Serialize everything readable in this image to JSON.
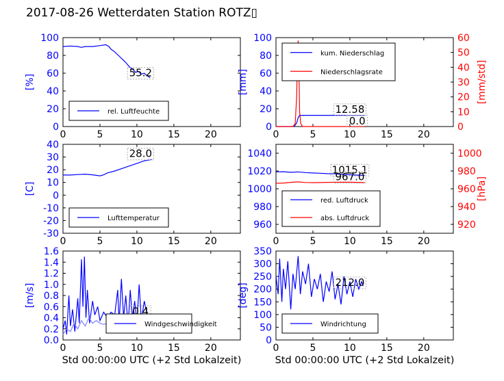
{
  "figure": {
    "title": "2017-08-26 Wetterdaten Station ROTZ▯",
    "xlabel": "Std 00:00:00 UTC (+2 Std Lokalzeit)"
  },
  "colors": {
    "blue": "#0000ff",
    "red": "#ff0000",
    "light_blue": "#7f7fff"
  },
  "chart_data": [
    {
      "id": "humidity",
      "type": "line",
      "xlim": [
        0,
        24
      ],
      "xticks": [
        0,
        5,
        10,
        15,
        20
      ],
      "ylim": [
        0,
        100
      ],
      "yticks": [
        0,
        20,
        40,
        60,
        80,
        100
      ],
      "ylabel": "[%]",
      "legend_position": "bottom-left",
      "annotations": [
        {
          "text": "55.2",
          "x": 10.5,
          "y": 58,
          "color": "#000000"
        }
      ],
      "series": [
        {
          "name": "rel. Luftfeuchte",
          "color": "#0000ff",
          "axis": "left",
          "points": [
            [
              0,
              90
            ],
            [
              1,
              90.5
            ],
            [
              2,
              90
            ],
            [
              2.5,
              89
            ],
            [
              3,
              90
            ],
            [
              4,
              90
            ],
            [
              5,
              91
            ],
            [
              5.8,
              92
            ],
            [
              6.2,
              90
            ],
            [
              6.5,
              87
            ],
            [
              7,
              84
            ],
            [
              7.5,
              80
            ],
            [
              8,
              76
            ],
            [
              8.5,
              72
            ],
            [
              9,
              67
            ],
            [
              9.4,
              65
            ],
            [
              9.8,
              61
            ],
            [
              10.2,
              62
            ],
            [
              10.6,
              59
            ],
            [
              11,
              60
            ],
            [
              11.4,
              57
            ],
            [
              11.8,
              55
            ]
          ]
        }
      ]
    },
    {
      "id": "precipitation",
      "type": "line",
      "xlim": [
        0,
        24
      ],
      "xticks": [
        0,
        5,
        10,
        15,
        20
      ],
      "ylim": [
        0,
        100
      ],
      "yticks": [
        0,
        20,
        40,
        60,
        80,
        100
      ],
      "ylabel": "[mm]",
      "y2lim": [
        0,
        60
      ],
      "y2ticks": [
        0,
        10,
        20,
        30,
        40,
        50,
        60
      ],
      "y2label": "[mm/std]",
      "legend_position": "top-left",
      "annotations": [
        {
          "text": "12.58",
          "x": 10,
          "y": 17,
          "color": "#000000"
        },
        {
          "text": "0.0",
          "x": 11,
          "y": 4,
          "color": "#000000"
        }
      ],
      "series": [
        {
          "name": "kum. Niederschlag",
          "color": "#0000ff",
          "axis": "left",
          "points": [
            [
              0,
              0
            ],
            [
              2,
              0
            ],
            [
              2.5,
              0.5
            ],
            [
              2.8,
              4
            ],
            [
              3,
              10
            ],
            [
              3.2,
              12.58
            ],
            [
              6,
              12.58
            ],
            [
              12,
              12.58
            ]
          ]
        },
        {
          "name": "Niederschlagsrate",
          "color": "#ff0000",
          "axis": "right",
          "points": [
            [
              0,
              0
            ],
            [
              2.3,
              0
            ],
            [
              2.6,
              2
            ],
            [
              2.8,
              20
            ],
            [
              2.9,
              45
            ],
            [
              3,
              58
            ],
            [
              3.1,
              40
            ],
            [
              3.2,
              10
            ],
            [
              3.35,
              2
            ],
            [
              3.6,
              0
            ],
            [
              12,
              0
            ]
          ]
        }
      ]
    },
    {
      "id": "temperature",
      "type": "line",
      "xlim": [
        0,
        24
      ],
      "xticks": [
        0,
        5,
        10,
        15,
        20
      ],
      "ylim": [
        -30,
        40
      ],
      "yticks": [
        -30,
        -20,
        -10,
        0,
        10,
        20,
        30,
        40
      ],
      "ylabel": "[C]",
      "legend_position": "bottom-left",
      "annotations": [
        {
          "text": "28.0",
          "x": 10.5,
          "y": 31,
          "color": "#000000"
        }
      ],
      "series": [
        {
          "name": "Lufttemperatur",
          "color": "#0000ff",
          "axis": "left",
          "points": [
            [
              0,
              15.8
            ],
            [
              1,
              15.8
            ],
            [
              2,
              16.2
            ],
            [
              3,
              16.5
            ],
            [
              4,
              16
            ],
            [
              5,
              15.2
            ],
            [
              5.5,
              16
            ],
            [
              6,
              17.5
            ],
            [
              7,
              19
            ],
            [
              8,
              21
            ],
            [
              9,
              23
            ],
            [
              10,
              25
            ],
            [
              11,
              27
            ],
            [
              12,
              28
            ]
          ]
        }
      ]
    },
    {
      "id": "pressure",
      "type": "line",
      "xlim": [
        0,
        24
      ],
      "xticks": [
        0,
        5,
        10,
        15,
        20
      ],
      "ylim": [
        950,
        1050
      ],
      "yticks": [
        960,
        980,
        1000,
        1020,
        1040
      ],
      "ylabel": "",
      "y2lim": [
        910,
        1010
      ],
      "y2ticks": [
        920,
        940,
        960,
        980,
        1000
      ],
      "y2label": "[hPa]",
      "legend_position": "bottom-left",
      "annotations": [
        {
          "text": "1015.1",
          "x": 10,
          "y": 1019,
          "color": "#000000"
        },
        {
          "text": "967.0",
          "x": 10,
          "y": 1011,
          "color": "#000000"
        }
      ],
      "series": [
        {
          "name": "red. Luftdruck",
          "color": "#0000ff",
          "axis": "left",
          "points": [
            [
              0,
              1019
            ],
            [
              1,
              1019.2
            ],
            [
              2,
              1018.5
            ],
            [
              3,
              1019
            ],
            [
              4,
              1018.2
            ],
            [
              5,
              1017.8
            ],
            [
              6,
              1017.5
            ],
            [
              7,
              1017
            ],
            [
              8,
              1016.8
            ],
            [
              9,
              1016.2
            ],
            [
              10,
              1015.8
            ],
            [
              11,
              1015.4
            ],
            [
              12,
              1015.1
            ]
          ]
        },
        {
          "name": "abs. Luftdruck",
          "color": "#ff0000",
          "axis": "right",
          "points": [
            [
              0,
              966.2
            ],
            [
              1,
              966.5
            ],
            [
              2,
              967.2
            ],
            [
              3,
              967.8
            ],
            [
              4,
              967.1
            ],
            [
              5,
              966.9
            ],
            [
              6,
              967
            ],
            [
              7,
              967.2
            ],
            [
              8,
              967.3
            ],
            [
              9,
              967.5
            ],
            [
              10,
              967.4
            ],
            [
              11,
              967.2
            ],
            [
              12,
              967
            ]
          ]
        }
      ]
    },
    {
      "id": "windspeed",
      "type": "line",
      "xlim": [
        0,
        24
      ],
      "xticks": [
        0,
        5,
        10,
        15,
        20
      ],
      "ylim": [
        0,
        1.6
      ],
      "yticks": [
        0.0,
        0.2,
        0.4,
        0.6,
        0.8,
        1.0,
        1.2,
        1.4,
        1.6
      ],
      "ylabel": "[m/s]",
      "legend_position": "bottom-right",
      "annotations": [
        {
          "text": "0.4",
          "x": 10.5,
          "y": 0.48,
          "color": "#000000"
        }
      ],
      "series": [
        {
          "name": "Windgeschwindigkeit",
          "color": "#0000ff",
          "axis": "left",
          "points": [
            [
              0,
              0.2
            ],
            [
              0.3,
              0.35
            ],
            [
              0.5,
              0.1
            ],
            [
              0.8,
              0.8
            ],
            [
              1,
              0.25
            ],
            [
              1.3,
              0.55
            ],
            [
              1.6,
              0.15
            ],
            [
              2,
              0.75
            ],
            [
              2.2,
              0.3
            ],
            [
              2.5,
              1.45
            ],
            [
              2.7,
              0.6
            ],
            [
              2.9,
              1.5
            ],
            [
              3.1,
              0.4
            ],
            [
              3.3,
              0.9
            ],
            [
              3.6,
              0.3
            ],
            [
              4,
              0.7
            ],
            [
              4.3,
              0.45
            ],
            [
              4.7,
              0.6
            ],
            [
              5,
              0.35
            ],
            [
              5.5,
              0.5
            ],
            [
              6,
              0.4
            ],
            [
              6.5,
              0.5
            ],
            [
              7,
              0.45
            ],
            [
              7.4,
              0.9
            ],
            [
              7.6,
              0.3
            ],
            [
              7.9,
              1.1
            ],
            [
              8.2,
              0.4
            ],
            [
              8.5,
              0.8
            ],
            [
              8.8,
              0.25
            ],
            [
              9.1,
              0.9
            ],
            [
              9.4,
              0.4
            ],
            [
              9.7,
              0.7
            ],
            [
              10,
              0.3
            ],
            [
              10.3,
              1.0
            ],
            [
              10.6,
              0.35
            ],
            [
              11,
              0.7
            ],
            [
              11.4,
              0.45
            ],
            [
              11.8,
              0.4
            ]
          ]
        },
        {
          "name": "",
          "color": "#7f7fff",
          "axis": "left",
          "points": [
            [
              0,
              0.1
            ],
            [
              0.5,
              0.2
            ],
            [
              1,
              0.15
            ],
            [
              1.5,
              0.3
            ],
            [
              2,
              0.2
            ],
            [
              2.5,
              0.35
            ],
            [
              3,
              0.25
            ],
            [
              3.5,
              0.4
            ],
            [
              4,
              0.3
            ],
            [
              4.5,
              0.35
            ],
            [
              5,
              0.3
            ],
            [
              5.5,
              0.28
            ],
            [
              6,
              0.3
            ],
            [
              6.5,
              0.25
            ],
            [
              7,
              0.3
            ],
            [
              7.5,
              0.35
            ],
            [
              8,
              0.3
            ],
            [
              8.5,
              0.35
            ],
            [
              9,
              0.25
            ],
            [
              9.5,
              0.3
            ],
            [
              10,
              0.28
            ],
            [
              10.5,
              0.3
            ],
            [
              11,
              0.27
            ],
            [
              11.8,
              0.3
            ]
          ]
        }
      ]
    },
    {
      "id": "winddirection",
      "type": "line",
      "xlim": [
        0,
        24
      ],
      "xticks": [
        0,
        5,
        10,
        15,
        20
      ],
      "ylim": [
        0,
        350
      ],
      "yticks": [
        0,
        50,
        100,
        150,
        200,
        250,
        300,
        350
      ],
      "ylabel": "[deg]",
      "legend_position": "bottom-left",
      "annotations": [
        {
          "text": "212.0",
          "x": 10,
          "y": 218,
          "color": "#000000"
        }
      ],
      "series": [
        {
          "name": "Windrichtung",
          "color": "#0000ff",
          "axis": "left",
          "points": [
            [
              0,
              250
            ],
            [
              0.3,
              180
            ],
            [
              0.5,
              320
            ],
            [
              0.8,
              150
            ],
            [
              1,
              280
            ],
            [
              1.3,
              200
            ],
            [
              1.6,
              310
            ],
            [
              2,
              120
            ],
            [
              2.3,
              260
            ],
            [
              2.6,
              200
            ],
            [
              3,
              330
            ],
            [
              3.3,
              180
            ],
            [
              3.6,
              270
            ],
            [
              4,
              220
            ],
            [
              4.4,
              300
            ],
            [
              4.8,
              170
            ],
            [
              5.2,
              240
            ],
            [
              5.6,
              200
            ],
            [
              6,
              260
            ],
            [
              6.4,
              150
            ],
            [
              6.8,
              230
            ],
            [
              7.2,
              190
            ],
            [
              7.6,
              270
            ],
            [
              8,
              160
            ],
            [
              8.4,
              220
            ],
            [
              8.8,
              140
            ],
            [
              9.2,
              250
            ],
            [
              9.6,
              180
            ],
            [
              10,
              230
            ],
            [
              10.4,
              170
            ],
            [
              10.8,
              240
            ],
            [
              11.2,
              200
            ],
            [
              11.6,
              230
            ],
            [
              11.8,
              212
            ]
          ]
        }
      ]
    }
  ]
}
